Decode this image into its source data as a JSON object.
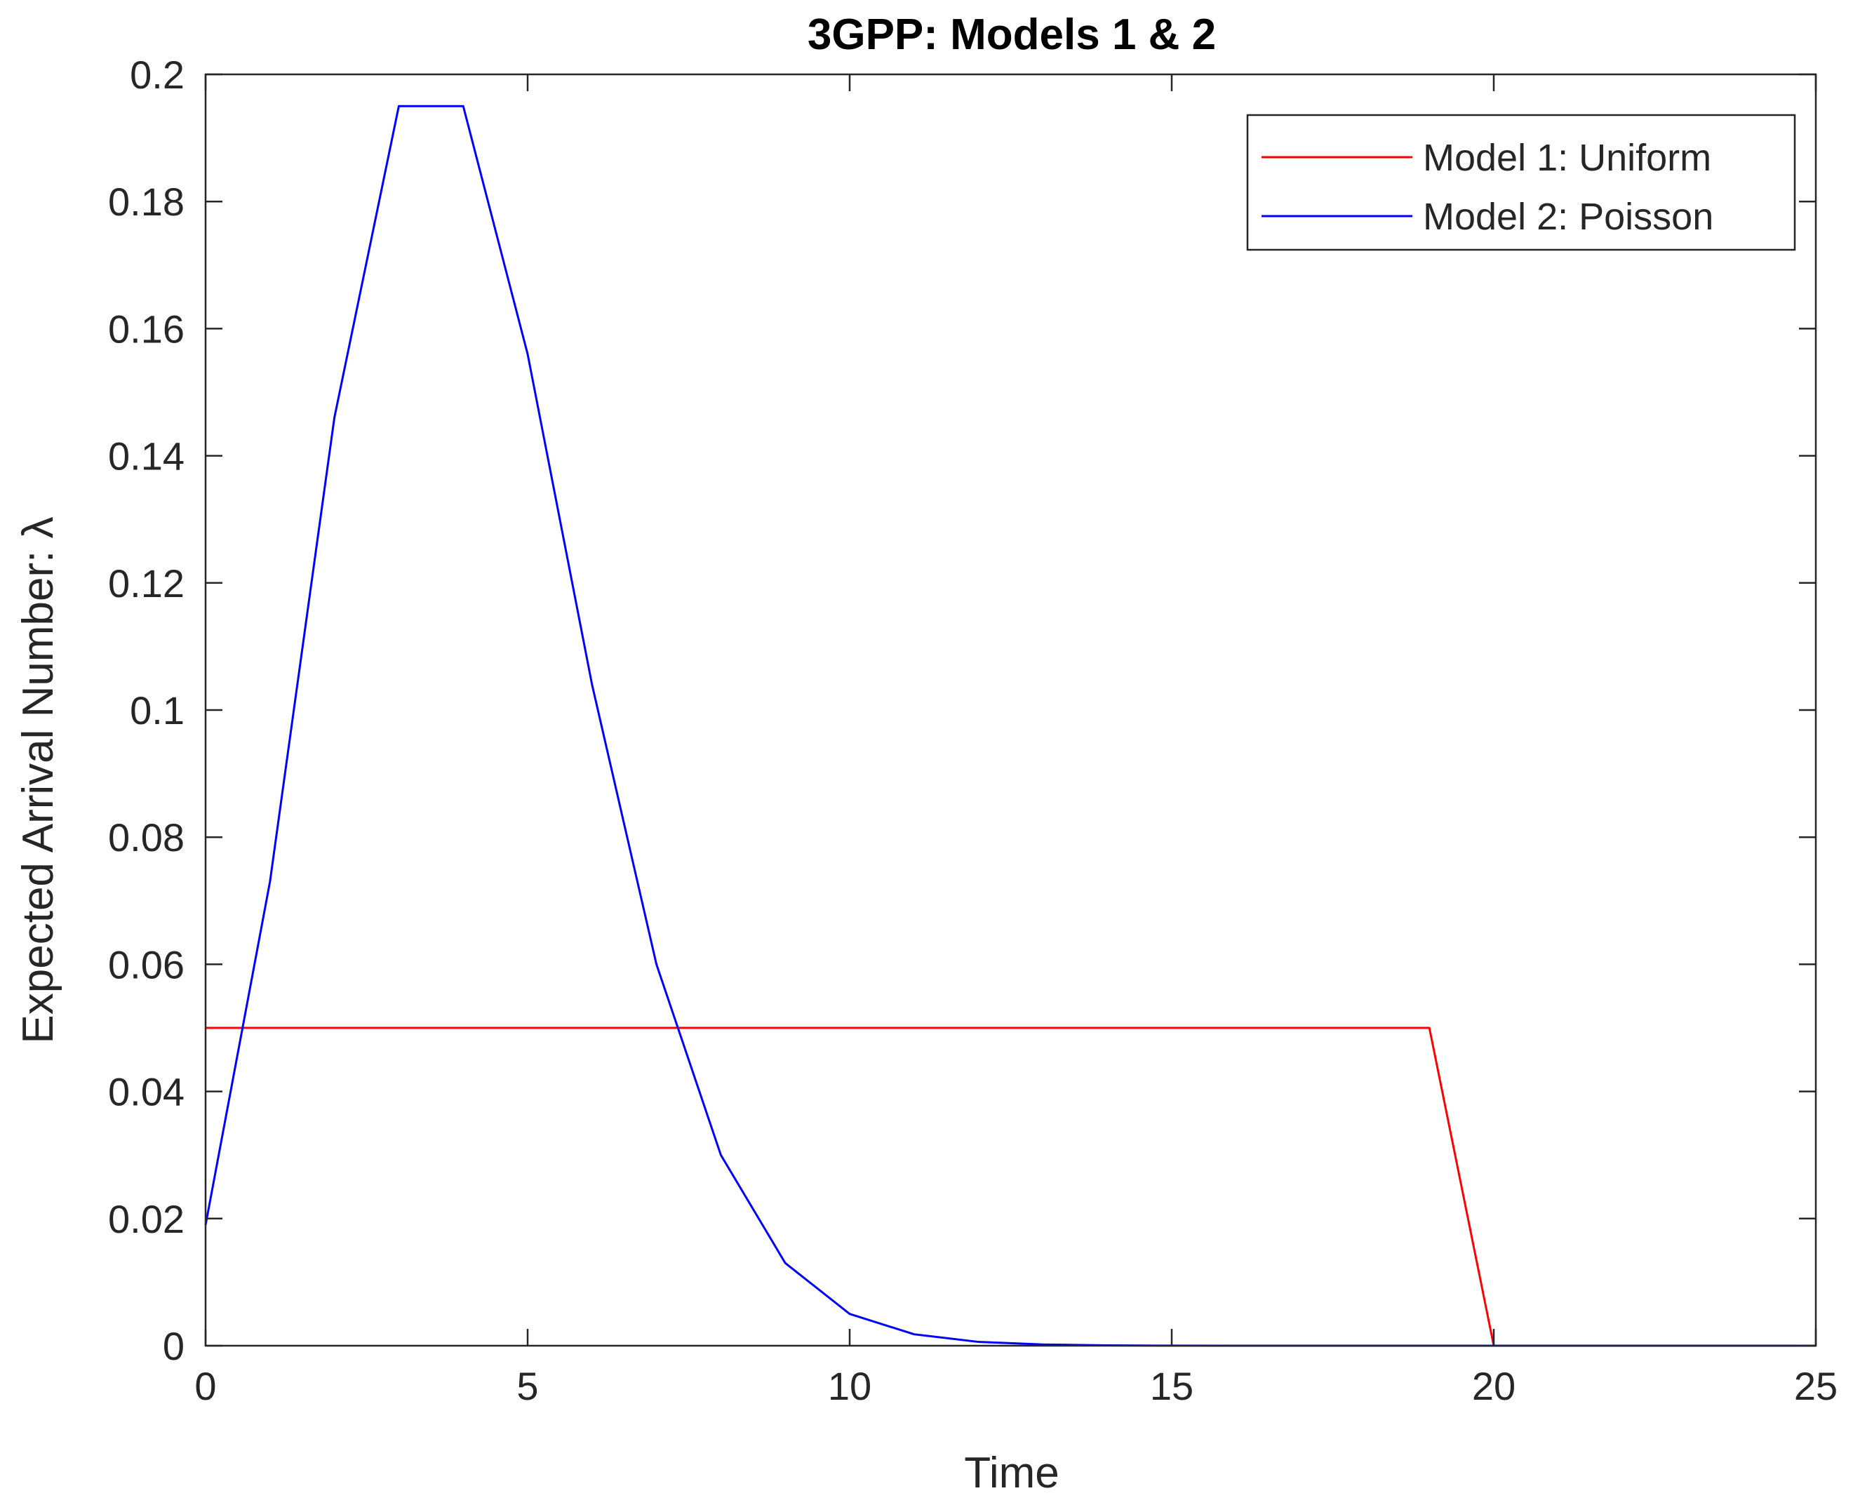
{
  "chart_data": {
    "type": "line",
    "title": "3GPP: Models 1 & 2",
    "xlabel": "Time",
    "ylabel": "Expected Arrival Number: λ",
    "xlim": [
      0,
      25
    ],
    "ylim": [
      0,
      0.2
    ],
    "xticks": [
      0,
      5,
      10,
      15,
      20,
      25
    ],
    "yticks": [
      0,
      0.02,
      0.04,
      0.06,
      0.08,
      0.1,
      0.12,
      0.14,
      0.16,
      0.18,
      0.2
    ],
    "ytick_labels": [
      "0",
      "0.02",
      "0.04",
      "0.06",
      "0.08",
      "0.1",
      "0.12",
      "0.14",
      "0.16",
      "0.18",
      "0.2"
    ],
    "grid": false,
    "legend_position": "top-right",
    "series": [
      {
        "name": "Model 1: Uniform",
        "color": "#ff0000",
        "x": [
          0,
          19,
          20,
          25
        ],
        "y": [
          0.05,
          0.05,
          0,
          0
        ]
      },
      {
        "name": "Model 2: Poisson",
        "color": "#0000ff",
        "x": [
          0,
          1,
          2,
          3,
          4,
          5,
          6,
          7,
          8,
          9,
          10,
          11,
          12,
          13,
          14,
          15,
          16,
          17,
          18,
          19,
          20,
          21,
          22,
          23,
          24,
          25
        ],
        "y": [
          0.019,
          0.073,
          0.146,
          0.195,
          0.195,
          0.156,
          0.104,
          0.06,
          0.03,
          0.013,
          0.005,
          0.0018,
          0.0006,
          0.0002,
          5e-05,
          1e-05,
          0,
          0,
          0,
          0,
          0,
          0,
          0,
          0,
          0,
          0
        ]
      }
    ]
  }
}
